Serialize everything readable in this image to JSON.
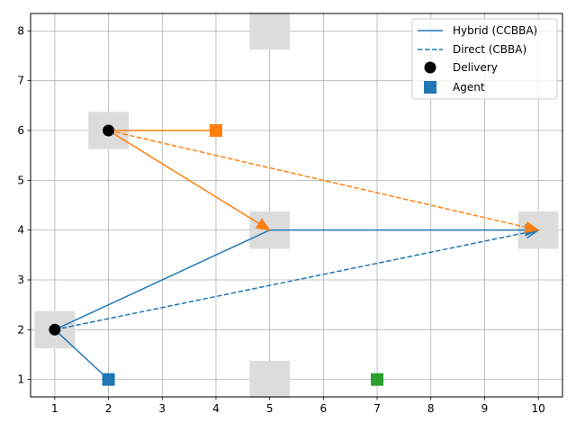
{
  "chart_data": {
    "type": "line",
    "title": "",
    "xlabel": "",
    "ylabel": "",
    "xlim": [
      0.55,
      10.45
    ],
    "ylim": [
      0.65,
      8.35
    ],
    "xticks": [
      1,
      2,
      3,
      4,
      5,
      6,
      7,
      8,
      9,
      10
    ],
    "yticks": [
      1,
      2,
      3,
      4,
      5,
      6,
      7,
      8
    ],
    "grid": true,
    "legend_position": "top-right",
    "legend": [
      {
        "label": "Hybrid (CCBBA)",
        "style": "solid-line"
      },
      {
        "label": "Direct (CBBA)",
        "style": "dashed-line"
      },
      {
        "label": "Delivery",
        "style": "circle"
      },
      {
        "label": "Agent",
        "style": "square"
      }
    ],
    "regions": [
      {
        "x": 5,
        "y": 8
      },
      {
        "x": 2,
        "y": 6
      },
      {
        "x": 5,
        "y": 4
      },
      {
        "x": 10,
        "y": 4
      },
      {
        "x": 1,
        "y": 2
      },
      {
        "x": 5,
        "y": 1
      }
    ],
    "agents": [
      {
        "x": 2,
        "y": 1,
        "color": "#1f77b4"
      },
      {
        "x": 4,
        "y": 6,
        "color": "#ff7f0e"
      },
      {
        "x": 7,
        "y": 1,
        "color": "#2ca02c"
      }
    ],
    "deliveries": [
      {
        "x": 2,
        "y": 6
      },
      {
        "x": 1,
        "y": 2
      }
    ],
    "segments": [
      {
        "series": "Hybrid (CCBBA)",
        "color": "#1f77b4",
        "style": "solid",
        "arrow": false,
        "from": [
          2,
          1
        ],
        "to": [
          1,
          2
        ]
      },
      {
        "series": "Hybrid (CCBBA)",
        "color": "#1f77b4",
        "style": "solid",
        "arrow": false,
        "from": [
          1,
          2
        ],
        "to": [
          5,
          4
        ]
      },
      {
        "series": "Hybrid (CCBBA)",
        "color": "#1f77b4",
        "style": "solid",
        "arrow": true,
        "from": [
          5,
          4
        ],
        "to": [
          10,
          4
        ]
      },
      {
        "series": "Direct (CBBA)",
        "color": "#1f77b4",
        "style": "dashed",
        "arrow": true,
        "from": [
          1,
          2
        ],
        "to": [
          10,
          4
        ]
      },
      {
        "series": "Hybrid (CCBBA)",
        "color": "#ff7f0e",
        "style": "solid",
        "arrow": false,
        "from": [
          4,
          6
        ],
        "to": [
          2,
          6
        ]
      },
      {
        "series": "Hybrid (CCBBA)",
        "color": "#ff7f0e",
        "style": "solid",
        "arrow": true,
        "from": [
          2,
          6
        ],
        "to": [
          5,
          4
        ]
      },
      {
        "series": "Direct (CBBA)",
        "color": "#ff7f0e",
        "style": "dashed",
        "arrow": true,
        "from": [
          2,
          6
        ],
        "to": [
          10,
          4
        ]
      }
    ]
  }
}
